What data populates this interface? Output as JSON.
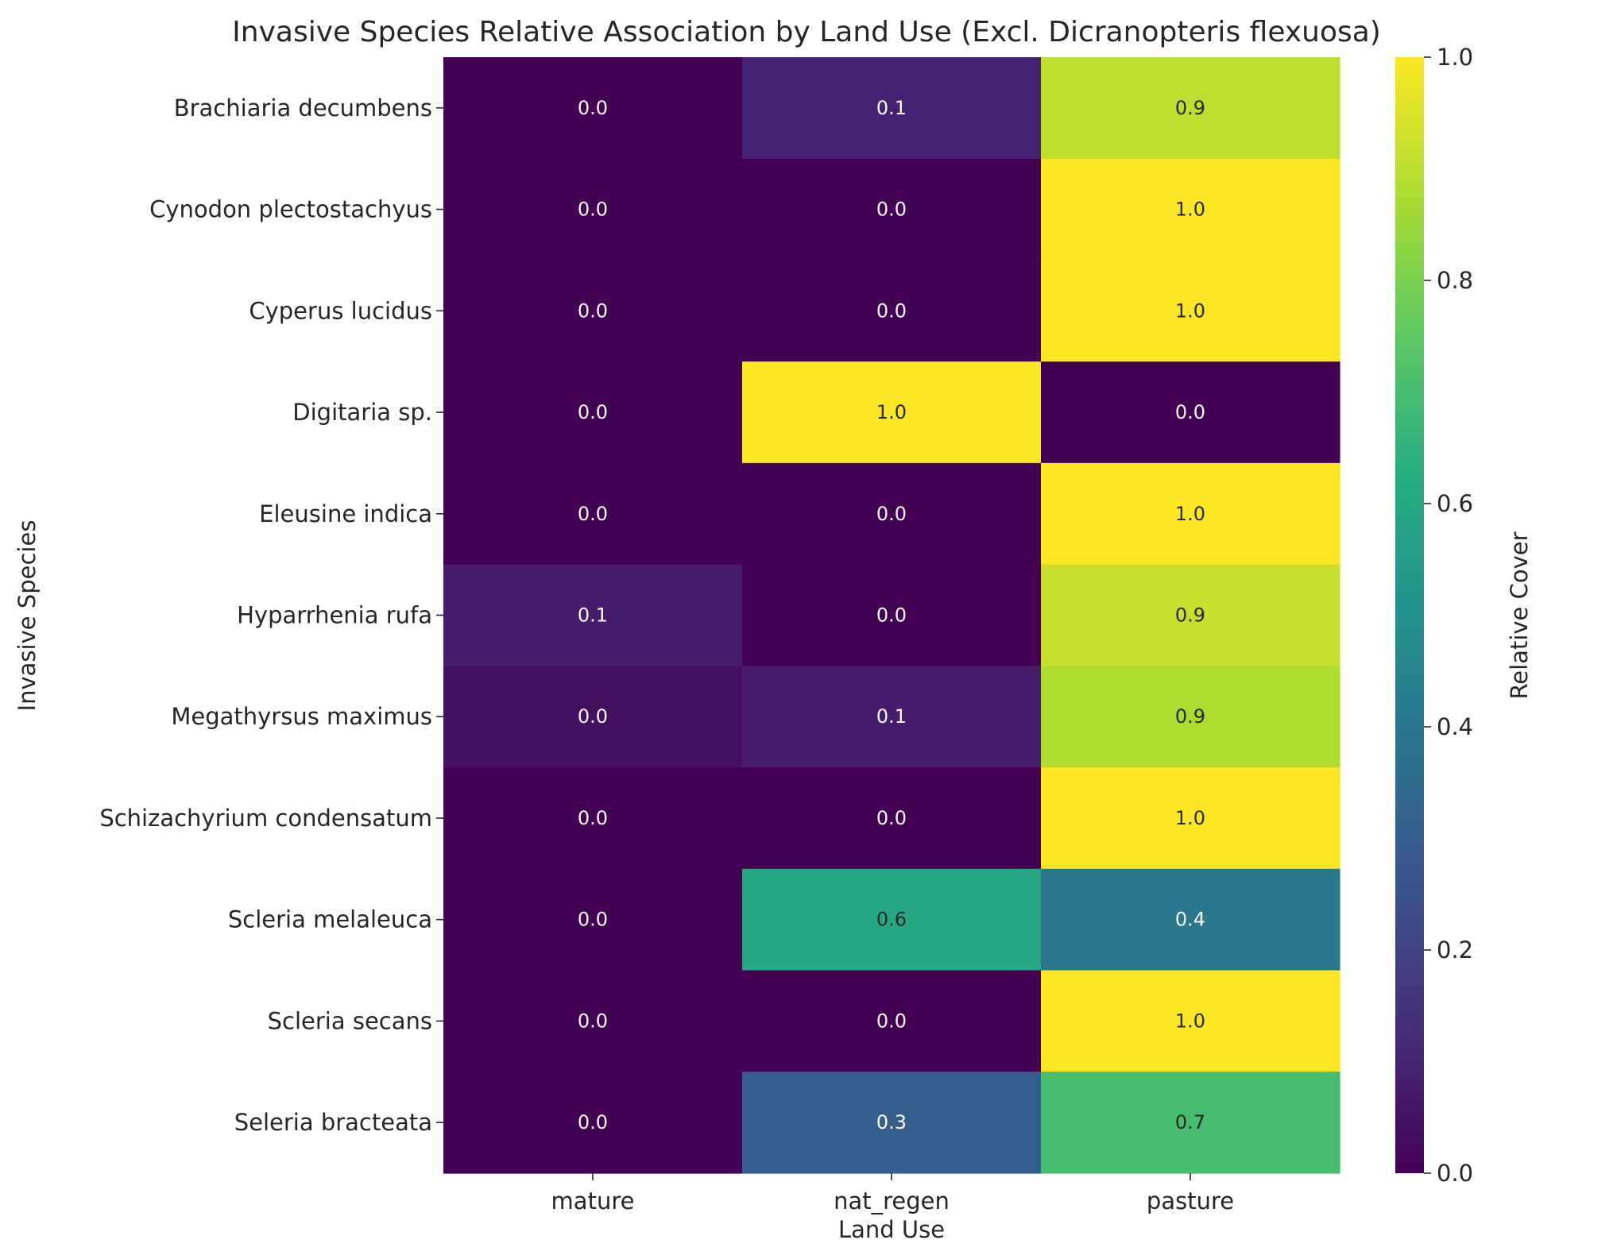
{
  "chart_data": {
    "type": "heatmap",
    "title": "Invasive Species Relative Association by Land Use (Excl. Dicranopteris flexuosa)",
    "xlabel": "Land Use",
    "ylabel": "Invasive Species",
    "columns": [
      "mature",
      "nat_regen",
      "pasture"
    ],
    "rows": [
      "Brachiaria decumbens",
      "Cynodon plectostachyus",
      "Cyperus lucidus",
      "Digitaria sp.",
      "Eleusine indica",
      "Hyparrhenia rufa",
      "Megathyrsus maximus",
      "Schizachyrium condensatum",
      "Scleria melaleuca",
      "Scleria secans",
      "Seleria bracteata"
    ],
    "values": [
      [
        0.0,
        0.1,
        0.9
      ],
      [
        0.0,
        0.0,
        1.0
      ],
      [
        0.0,
        0.0,
        1.0
      ],
      [
        0.0,
        1.0,
        0.0
      ],
      [
        0.0,
        0.0,
        1.0
      ],
      [
        0.08,
        0.0,
        0.92
      ],
      [
        0.04,
        0.08,
        0.88
      ],
      [
        0.0,
        0.0,
        1.0
      ],
      [
        0.0,
        0.6,
        0.4
      ],
      [
        0.0,
        0.0,
        1.0
      ],
      [
        0.0,
        0.3,
        0.7
      ]
    ],
    "annotations": [
      [
        "0.0",
        "0.1",
        "0.9"
      ],
      [
        "0.0",
        "0.0",
        "1.0"
      ],
      [
        "0.0",
        "0.0",
        "1.0"
      ],
      [
        "0.0",
        "1.0",
        "0.0"
      ],
      [
        "0.0",
        "0.0",
        "1.0"
      ],
      [
        "0.1",
        "0.0",
        "0.9"
      ],
      [
        "0.0",
        "0.1",
        "0.9"
      ],
      [
        "0.0",
        "0.0",
        "1.0"
      ],
      [
        "0.0",
        "0.6",
        "0.4"
      ],
      [
        "0.0",
        "0.0",
        "1.0"
      ],
      [
        "0.0",
        "0.3",
        "0.7"
      ]
    ],
    "colormap": "viridis",
    "vmin": 0.0,
    "vmax": 1.0,
    "colorbar": {
      "label": "Relative Cover",
      "ticks": [
        0.0,
        0.2,
        0.4,
        0.6,
        0.8,
        1.0
      ],
      "tick_labels": [
        "0.0",
        "0.2",
        "0.4",
        "0.6",
        "0.8",
        "1.0"
      ]
    }
  }
}
